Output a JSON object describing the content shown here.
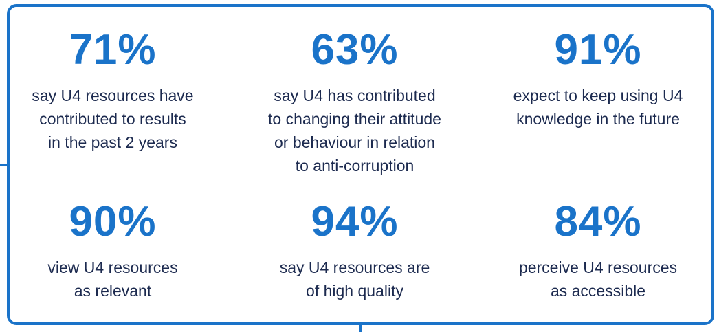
{
  "colors": {
    "accent": "#1a73c9",
    "text": "#1c2a4f",
    "background": "#ffffff"
  },
  "stats": [
    {
      "value": "71%",
      "label": "say U4 resources have\ncontributed to results\nin the past 2 years"
    },
    {
      "value": "63%",
      "label": "say U4 has contributed\nto changing their attitude\nor behaviour in relation\nto anti-corruption"
    },
    {
      "value": "91%",
      "label": "expect to keep using U4\nknowledge in the future"
    },
    {
      "value": "90%",
      "label": "view U4 resources\nas relevant"
    },
    {
      "value": "94%",
      "label": "say U4 resources are\nof high quality"
    },
    {
      "value": "84%",
      "label": "perceive U4 resources\nas accessible"
    }
  ]
}
